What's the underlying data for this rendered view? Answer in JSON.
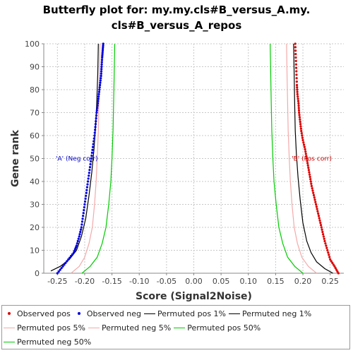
{
  "title_line1": "Butterfly plot for: my.my.cls#B_versus_A.my.",
  "title_line2": "cls#B_versus_A_repos",
  "chart_data": {
    "type": "line",
    "title": "Butterfly plot for: my.my.cls#B_versus_A.my.cls#B_versus_A_repos",
    "xlabel": "Score (Signal2Noise)",
    "ylabel": "Gene rank",
    "xlim": [
      -0.275,
      0.275
    ],
    "ylim": [
      0,
      100
    ],
    "x_ticks": [
      -0.25,
      -0.2,
      -0.15,
      -0.1,
      -0.05,
      0.0,
      0.05,
      0.1,
      0.15,
      0.2,
      0.25
    ],
    "x_tick_labels": [
      "-0.25",
      "-0.20",
      "-0.15",
      "-0.10",
      "-0.05",
      "0.00",
      "0.05",
      "0.10",
      "0.15",
      "0.20",
      "0.25"
    ],
    "y_ticks": [
      0,
      10,
      20,
      30,
      40,
      50,
      60,
      70,
      80,
      90,
      100
    ],
    "y_tick_labels": [
      "0",
      "10",
      "20",
      "30",
      "40",
      "50",
      "60",
      "70",
      "80",
      "90",
      "100"
    ],
    "grid": true,
    "legend_position": "bottom",
    "annotations": [
      {
        "text": "'A' (Neg corr)",
        "x": -0.253,
        "y": 50,
        "color": "#0000cc"
      },
      {
        "text": "'B' (Pos corr)",
        "x": 0.253,
        "y": 50,
        "color": "#cc0000"
      }
    ],
    "series": [
      {
        "name": "Observed pos",
        "style": "points",
        "color": "#dd0000",
        "x": [
          0.265,
          0.258,
          0.25,
          0.245,
          0.24,
          0.236,
          0.232,
          0.228,
          0.224,
          0.22,
          0.216,
          0.213,
          0.21,
          0.207,
          0.204,
          0.2,
          0.197,
          0.195,
          0.193,
          0.192,
          0.19,
          0.189,
          0.188,
          0.187,
          0.186
        ],
        "y": [
          0,
          3,
          6,
          10,
          14,
          18,
          22,
          26,
          30,
          34,
          38,
          42,
          46,
          50,
          54,
          58,
          62,
          66,
          70,
          74,
          78,
          82,
          88,
          94,
          100
        ]
      },
      {
        "name": "Observed neg",
        "style": "points",
        "color": "#0000dd",
        "x": [
          -0.25,
          -0.24,
          -0.23,
          -0.22,
          -0.215,
          -0.21,
          -0.206,
          -0.203,
          -0.2,
          -0.197,
          -0.194,
          -0.191,
          -0.188,
          -0.185,
          -0.182,
          -0.18,
          -0.178,
          -0.176,
          -0.174,
          -0.172,
          -0.17,
          -0.169,
          -0.168,
          -0.167,
          -0.166
        ],
        "y": [
          0,
          3,
          6,
          9,
          12,
          16,
          20,
          25,
          30,
          35,
          40,
          45,
          50,
          55,
          60,
          65,
          70,
          74,
          78,
          82,
          86,
          90,
          94,
          97,
          100
        ]
      },
      {
        "name": "Permuted pos 1%",
        "style": "line",
        "color": "#000000",
        "x": [
          0.255,
          0.24,
          0.225,
          0.215,
          0.207,
          0.2,
          0.195,
          0.191,
          0.188,
          0.186,
          0.185,
          0.184,
          0.183
        ],
        "y": [
          0,
          2,
          5,
          9,
          14,
          22,
          32,
          42,
          52,
          62,
          72,
          86,
          100
        ]
      },
      {
        "name": "Permuted neg 1%",
        "style": "line",
        "color": "#000000",
        "x": [
          -0.262,
          -0.245,
          -0.228,
          -0.215,
          -0.206,
          -0.198,
          -0.192,
          -0.187,
          -0.183,
          -0.18,
          -0.178,
          -0.176,
          -0.175
        ],
        "y": [
          1,
          3,
          6,
          10,
          16,
          24,
          34,
          44,
          54,
          64,
          74,
          87,
          100
        ]
      },
      {
        "name": "Permuted pos 5%",
        "style": "line",
        "color": "#f4aaaa",
        "x": [
          0.225,
          0.21,
          0.198,
          0.19,
          0.184,
          0.18,
          0.177,
          0.175,
          0.173,
          0.172,
          0.171,
          0.17
        ],
        "y": [
          0,
          3,
          7,
          13,
          20,
          30,
          40,
          50,
          62,
          74,
          86,
          100
        ]
      },
      {
        "name": "Permuted neg 5%",
        "style": "line",
        "color": "#f4aaaa",
        "x": [
          -0.225,
          -0.21,
          -0.2,
          -0.192,
          -0.186,
          -0.182,
          -0.179,
          -0.177,
          -0.175,
          -0.174,
          -0.173,
          -0.172
        ],
        "y": [
          0,
          3,
          7,
          13,
          20,
          30,
          40,
          50,
          62,
          74,
          86,
          100
        ]
      },
      {
        "name": "Permuted pos 50%",
        "style": "line",
        "color": "#00cc00",
        "x": [
          0.2,
          0.185,
          0.172,
          0.163,
          0.156,
          0.151,
          0.147,
          0.145,
          0.143,
          0.142,
          0.141,
          0.14
        ],
        "y": [
          0,
          3,
          7,
          13,
          20,
          30,
          40,
          50,
          62,
          74,
          86,
          100
        ]
      },
      {
        "name": "Permuted neg 50%",
        "style": "line",
        "color": "#00cc00",
        "x": [
          -0.205,
          -0.19,
          -0.177,
          -0.168,
          -0.161,
          -0.156,
          -0.152,
          -0.15,
          -0.148,
          -0.147,
          -0.146,
          -0.145
        ],
        "y": [
          0,
          3,
          7,
          13,
          20,
          30,
          40,
          50,
          62,
          74,
          86,
          100
        ]
      }
    ]
  },
  "legend_rows": [
    [
      {
        "label": "Observed pos",
        "kind": "dot",
        "color": "#dd0000"
      },
      {
        "label": "Observed neg",
        "kind": "dot",
        "color": "#0000dd"
      },
      {
        "label": "Permuted pos 1%",
        "kind": "line",
        "color": "#000000"
      },
      {
        "label": "Permuted neg 1%",
        "kind": "line",
        "color": "#000000"
      }
    ],
    [
      {
        "label": "Permuted pos 5%",
        "kind": "line",
        "color": "#f4aaaa"
      },
      {
        "label": "Permuted neg 5%",
        "kind": "line",
        "color": "#f4aaaa"
      },
      {
        "label": "Permuted pos 50%",
        "kind": "line",
        "color": "#00cc00"
      }
    ],
    [
      {
        "label": "Permuted neg 50%",
        "kind": "line",
        "color": "#00cc00"
      }
    ]
  ]
}
